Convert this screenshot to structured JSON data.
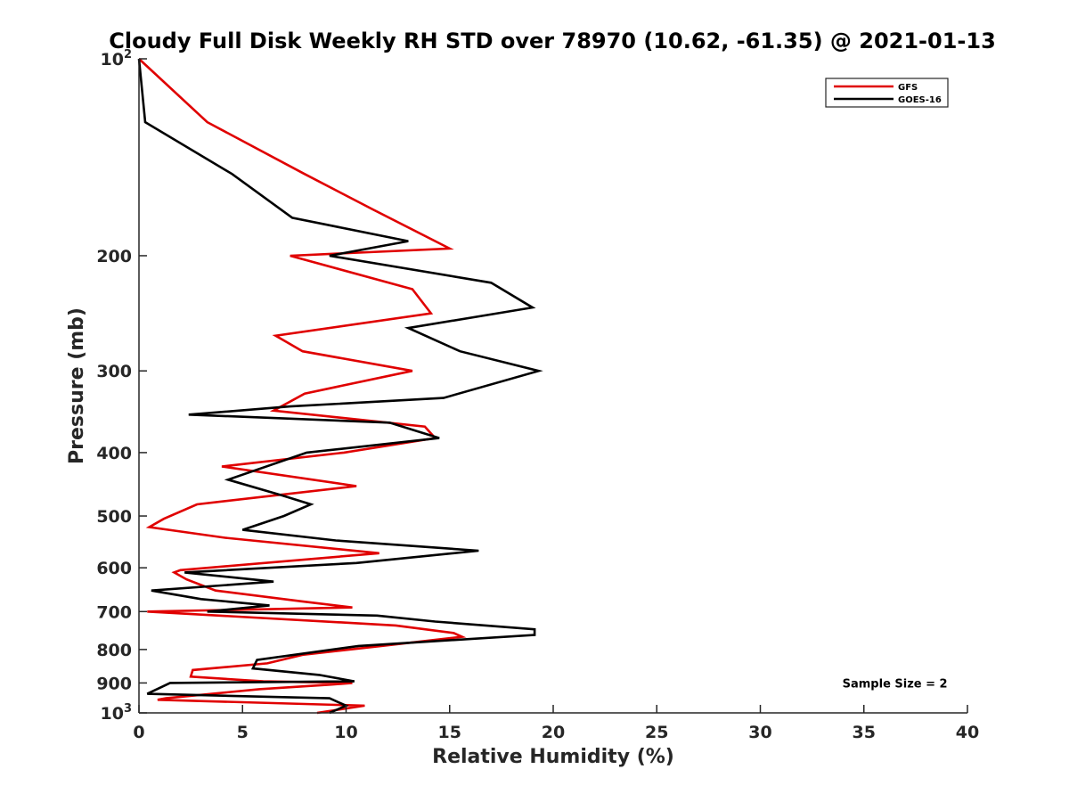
{
  "chart_data": {
    "type": "line",
    "title": "Cloudy Full Disk Weekly RH STD over 78970 (10.62, -61.35) @ 2021-01-13",
    "xlabel": "Relative Humidity (%)",
    "ylabel": "Pressure (mb)",
    "xlim": [
      0,
      40
    ],
    "ylim": [
      100,
      1000
    ],
    "yscale": "log",
    "y_reversed": true,
    "grid": false,
    "legend_position": "top-right",
    "x_ticks": [
      {
        "value": 0,
        "label": "0"
      },
      {
        "value": 5,
        "label": "5"
      },
      {
        "value": 10,
        "label": "10"
      },
      {
        "value": 15,
        "label": "15"
      },
      {
        "value": 20,
        "label": "20"
      },
      {
        "value": 25,
        "label": "25"
      },
      {
        "value": 30,
        "label": "30"
      },
      {
        "value": 35,
        "label": "35"
      },
      {
        "value": 40,
        "label": "40"
      }
    ],
    "y_ticks": [
      {
        "value": 100,
        "label": "10",
        "sup": "2"
      },
      {
        "value": 200,
        "label": "200"
      },
      {
        "value": 300,
        "label": "300"
      },
      {
        "value": 400,
        "label": "400"
      },
      {
        "value": 500,
        "label": "500"
      },
      {
        "value": 600,
        "label": "600"
      },
      {
        "value": 700,
        "label": "700"
      },
      {
        "value": 800,
        "label": "800"
      },
      {
        "value": 900,
        "label": "900"
      },
      {
        "value": 1000,
        "label": "10",
        "sup": "3"
      }
    ],
    "series": [
      {
        "name": "GFS",
        "color": "#e00000",
        "points": [
          [
            0.0,
            100
          ],
          [
            3.3,
            125
          ],
          [
            8.0,
            150
          ],
          [
            11.3,
            170
          ],
          [
            15.0,
            195
          ],
          [
            7.3,
            200
          ],
          [
            13.2,
            225
          ],
          [
            14.1,
            245
          ],
          [
            6.6,
            265
          ],
          [
            7.9,
            280
          ],
          [
            13.2,
            300
          ],
          [
            8.0,
            325
          ],
          [
            6.5,
            345
          ],
          [
            13.8,
            365
          ],
          [
            14.3,
            380
          ],
          [
            9.9,
            400
          ],
          [
            4.0,
            420
          ],
          [
            10.5,
            450
          ],
          [
            2.8,
            480
          ],
          [
            1.2,
            505
          ],
          [
            0.5,
            520
          ],
          [
            4.2,
            540
          ],
          [
            11.6,
            570
          ],
          [
            2.0,
            605
          ],
          [
            1.7,
            610
          ],
          [
            2.3,
            625
          ],
          [
            3.7,
            650
          ],
          [
            7.8,
            675
          ],
          [
            10.3,
            690
          ],
          [
            0.4,
            700
          ],
          [
            12.4,
            735
          ],
          [
            15.2,
            755
          ],
          [
            15.6,
            765
          ],
          [
            11.7,
            790
          ],
          [
            7.9,
            815
          ],
          [
            6.2,
            840
          ],
          [
            2.6,
            860
          ],
          [
            2.5,
            880
          ],
          [
            6.0,
            895
          ],
          [
            10.3,
            900
          ],
          [
            9.3,
            905
          ],
          [
            5.8,
            920
          ],
          [
            1.3,
            950
          ],
          [
            0.9,
            955
          ],
          [
            10.9,
            975
          ],
          [
            8.6,
            1000
          ]
        ]
      },
      {
        "name": "GOES-16",
        "color": "#000000",
        "points": [
          [
            0.0,
            100
          ],
          [
            0.3,
            125
          ],
          [
            4.5,
            150
          ],
          [
            7.4,
            175
          ],
          [
            13.0,
            190
          ],
          [
            9.2,
            200
          ],
          [
            17.0,
            220
          ],
          [
            19.0,
            240
          ],
          [
            13.0,
            258
          ],
          [
            15.5,
            280
          ],
          [
            19.3,
            300
          ],
          [
            14.7,
            330
          ],
          [
            7.3,
            340
          ],
          [
            2.4,
            350
          ],
          [
            12.1,
            360
          ],
          [
            14.5,
            380
          ],
          [
            8.1,
            400
          ],
          [
            4.3,
            440
          ],
          [
            6.9,
            465
          ],
          [
            8.3,
            480
          ],
          [
            7.0,
            500
          ],
          [
            5.0,
            525
          ],
          [
            9.5,
            545
          ],
          [
            16.4,
            565
          ],
          [
            10.5,
            590
          ],
          [
            2.2,
            610
          ],
          [
            6.5,
            630
          ],
          [
            0.6,
            650
          ],
          [
            3.0,
            670
          ],
          [
            6.3,
            685
          ],
          [
            3.3,
            700
          ],
          [
            11.5,
            710
          ],
          [
            14.3,
            725
          ],
          [
            19.1,
            745
          ],
          [
            19.1,
            760
          ],
          [
            10.6,
            790
          ],
          [
            5.7,
            830
          ],
          [
            5.5,
            855
          ],
          [
            8.7,
            875
          ],
          [
            10.4,
            895
          ],
          [
            1.5,
            900
          ],
          [
            0.4,
            935
          ],
          [
            9.2,
            950
          ],
          [
            10.0,
            975
          ],
          [
            9.2,
            1000
          ]
        ]
      }
    ],
    "annotations": [
      {
        "text": "Sample Size = 2",
        "x": 36.5,
        "y": 900
      }
    ]
  }
}
